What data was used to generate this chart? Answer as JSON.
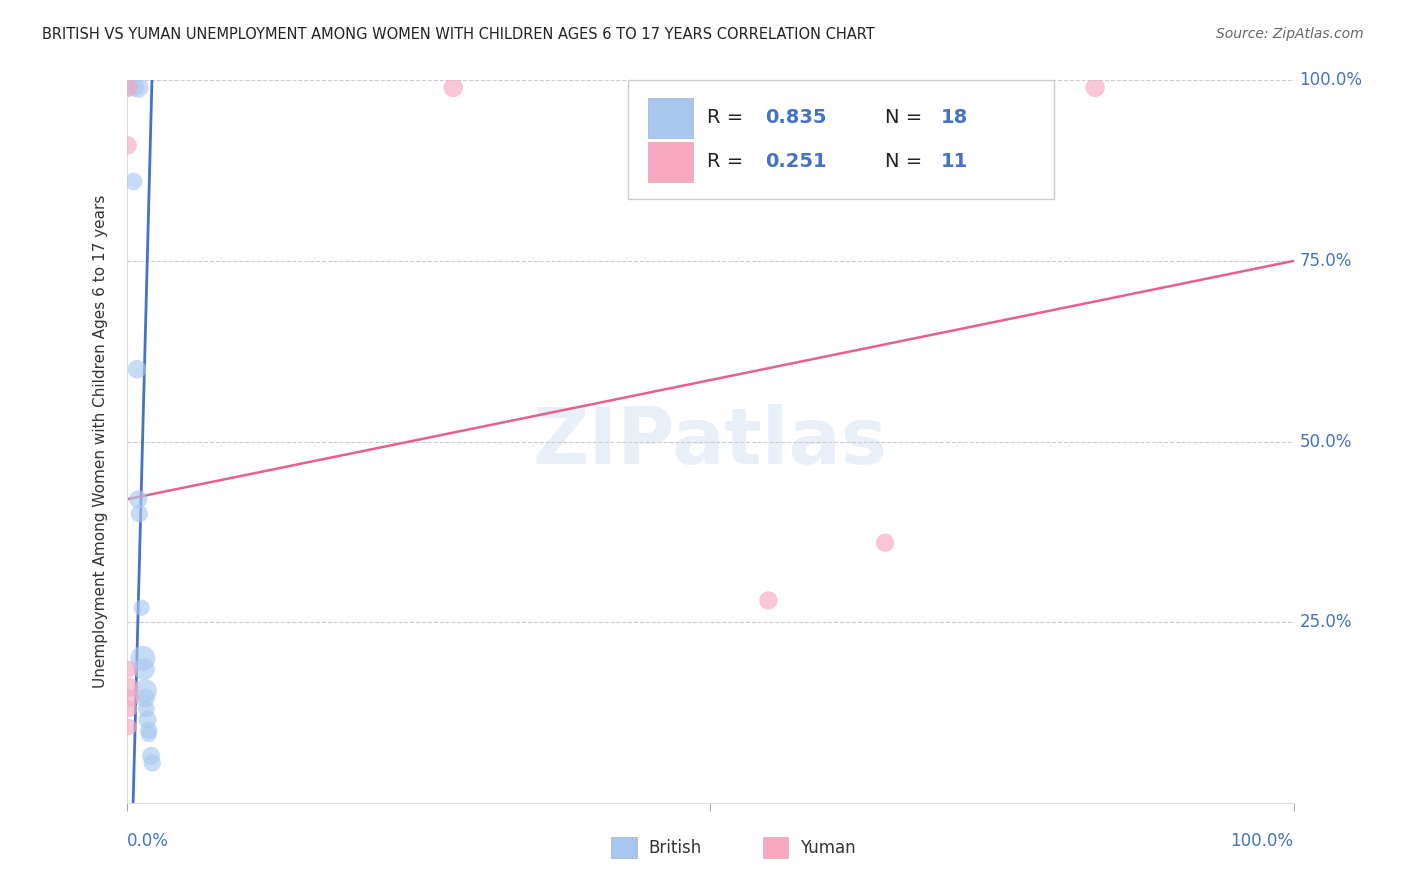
{
  "title": "BRITISH VS YUMAN UNEMPLOYMENT AMONG WOMEN WITH CHILDREN AGES 6 TO 17 YEARS CORRELATION CHART",
  "source": "Source: ZipAtlas.com",
  "ylabel": "Unemployment Among Women with Children Ages 6 to 17 years",
  "legend_british_r": "0.835",
  "legend_british_n": "18",
  "legend_yuman_r": "0.251",
  "legend_yuman_n": "11",
  "british_color": "#a8c8f0",
  "yuman_color": "#f5a8c0",
  "trendline_british_color": "#4472c4",
  "trendline_yuman_color": "#e8608a",
  "watermark": "ZIPatlas",
  "british_points": [
    [
      0.002,
      0.99
    ],
    [
      0.008,
      0.99
    ],
    [
      0.01,
      0.99
    ],
    [
      0.006,
      0.86
    ],
    [
      0.009,
      0.6
    ],
    [
      0.01,
      0.42
    ],
    [
      0.011,
      0.4
    ],
    [
      0.013,
      0.27
    ],
    [
      0.014,
      0.2
    ],
    [
      0.015,
      0.185
    ],
    [
      0.016,
      0.155
    ],
    [
      0.016,
      0.145
    ],
    [
      0.017,
      0.13
    ],
    [
      0.018,
      0.115
    ],
    [
      0.019,
      0.1
    ],
    [
      0.019,
      0.095
    ],
    [
      0.021,
      0.065
    ],
    [
      0.022,
      0.055
    ]
  ],
  "yuman_points": [
    [
      0.001,
      0.91
    ],
    [
      0.001,
      0.99
    ],
    [
      0.002,
      0.185
    ],
    [
      0.002,
      0.16
    ],
    [
      0.002,
      0.13
    ],
    [
      0.003,
      0.145
    ],
    [
      0.28,
      0.99
    ],
    [
      0.55,
      0.28
    ],
    [
      0.65,
      0.36
    ],
    [
      0.83,
      0.99
    ],
    [
      0.002,
      0.105
    ]
  ],
  "british_sizes": [
    160,
    140,
    220,
    160,
    180,
    170,
    155,
    135,
    320,
    240,
    280,
    190,
    145,
    170,
    155,
    135,
    170,
    155
  ],
  "yuman_sizes": [
    175,
    195,
    145,
    195,
    145,
    155,
    195,
    175,
    175,
    195,
    135
  ],
  "xlim": [
    0,
    1
  ],
  "ylim": [
    0,
    1
  ],
  "background_color": "#ffffff",
  "grid_color": "#cccccc",
  "tick_color": "#4472c4",
  "label_color": "#333333",
  "british_trendline_x": [
    0.0,
    0.022
  ],
  "british_trendline_slope": 62.0,
  "british_trendline_intercept": -0.35,
  "yuman_trendline_x": [
    0.0,
    1.0
  ],
  "yuman_trendline_slope": 0.33,
  "yuman_trendline_intercept": 0.42
}
